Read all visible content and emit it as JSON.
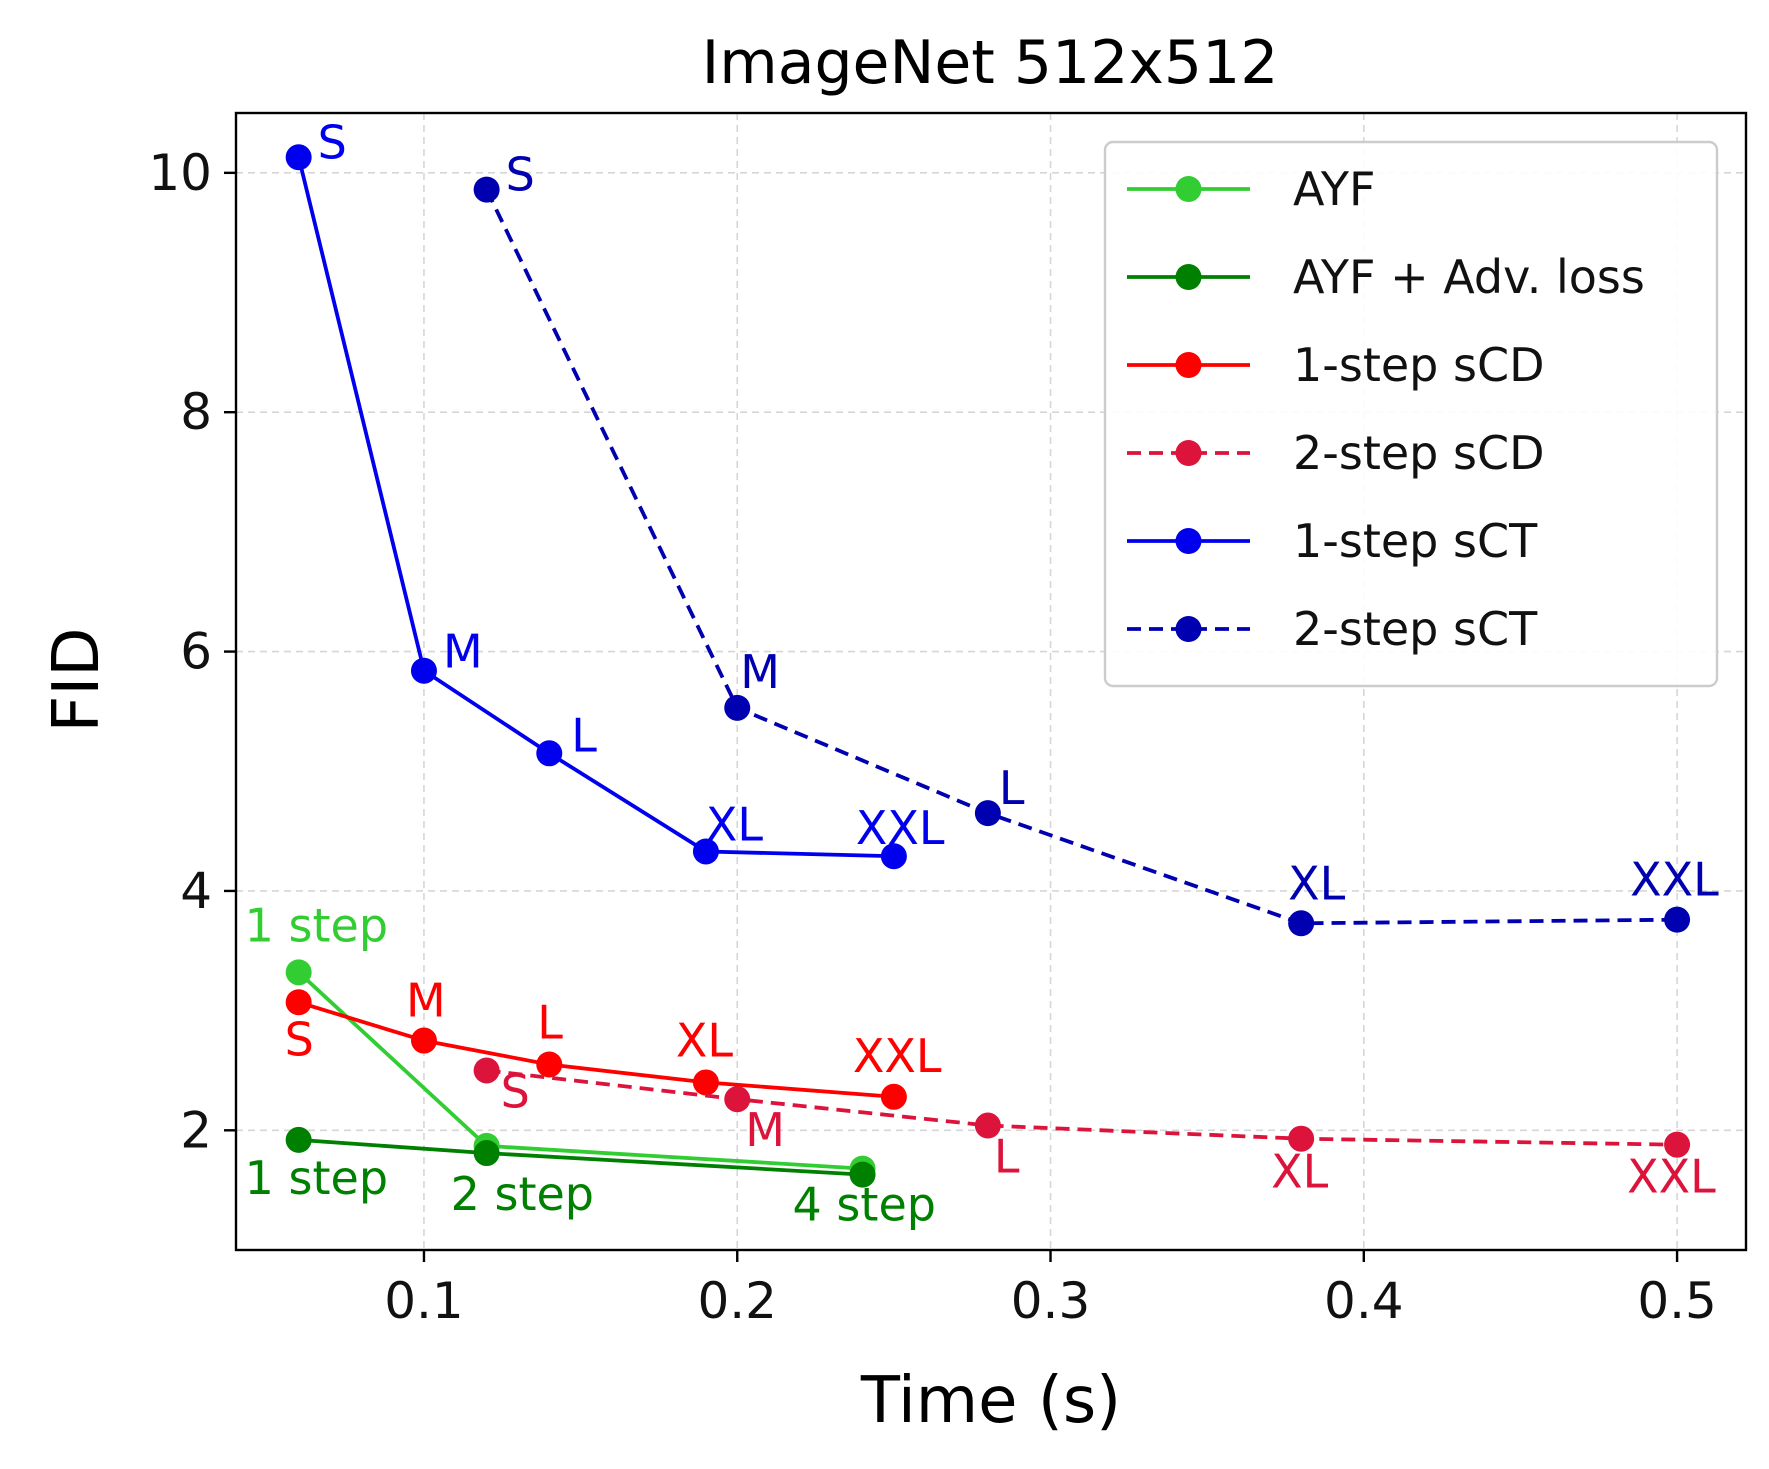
{
  "chart_data": {
    "type": "line",
    "title": "ImageNet 512x512",
    "xlabel": "Time (s)",
    "ylabel": "FID",
    "xlim": [
      0.04,
      0.522
    ],
    "ylim": [
      1.0,
      10.5
    ],
    "xticks": [
      0.1,
      0.2,
      0.3,
      0.4,
      0.5
    ],
    "xtick_labels": [
      "0.1",
      "0.2",
      "0.3",
      "0.4",
      "0.5"
    ],
    "yticks": [
      2,
      4,
      6,
      8,
      10
    ],
    "ytick_labels": [
      "2",
      "4",
      "6",
      "8",
      "10"
    ],
    "grid": true,
    "legend_position": "top-right",
    "series": [
      {
        "name": "AYF",
        "color": "#32cd32",
        "dashed": false,
        "x": [
          0.06,
          0.12,
          0.24
        ],
        "y": [
          3.32,
          1.87,
          1.68
        ],
        "labels": [
          "1 step",
          "",
          ""
        ]
      },
      {
        "name": "AYF + Adv. loss",
        "color": "#008000",
        "dashed": false,
        "x": [
          0.06,
          0.12,
          0.24
        ],
        "y": [
          1.92,
          1.81,
          1.63
        ],
        "labels": [
          "1 step",
          "2 step",
          "4 step"
        ]
      },
      {
        "name": "1-step sCD",
        "color": "#ff0000",
        "dashed": false,
        "x": [
          0.06,
          0.1,
          0.14,
          0.19,
          0.25
        ],
        "y": [
          3.07,
          2.75,
          2.55,
          2.4,
          2.28
        ],
        "labels": [
          "S",
          "M",
          "L",
          "XL",
          "XXL"
        ]
      },
      {
        "name": "2-step sCD",
        "color": "#dc143c",
        "dashed": true,
        "x": [
          0.12,
          0.2,
          0.28,
          0.38,
          0.5
        ],
        "y": [
          2.5,
          2.26,
          2.04,
          1.93,
          1.88
        ],
        "labels": [
          "S",
          "M",
          "L",
          "XL",
          "XXL"
        ]
      },
      {
        "name": "1-step sCT",
        "color": "#0000ee",
        "dashed": false,
        "x": [
          0.06,
          0.1,
          0.14,
          0.19,
          0.25
        ],
        "y": [
          10.13,
          5.84,
          5.15,
          4.33,
          4.29
        ],
        "labels": [
          "S",
          "M",
          "L",
          "XL",
          "XXL"
        ]
      },
      {
        "name": "2-step sCT",
        "color": "#0000b0",
        "dashed": true,
        "x": [
          0.12,
          0.2,
          0.28,
          0.38,
          0.5
        ],
        "y": [
          9.86,
          5.53,
          4.65,
          3.73,
          3.76
        ],
        "labels": [
          "S",
          "M",
          "L",
          "XL",
          "XXL"
        ]
      }
    ]
  }
}
